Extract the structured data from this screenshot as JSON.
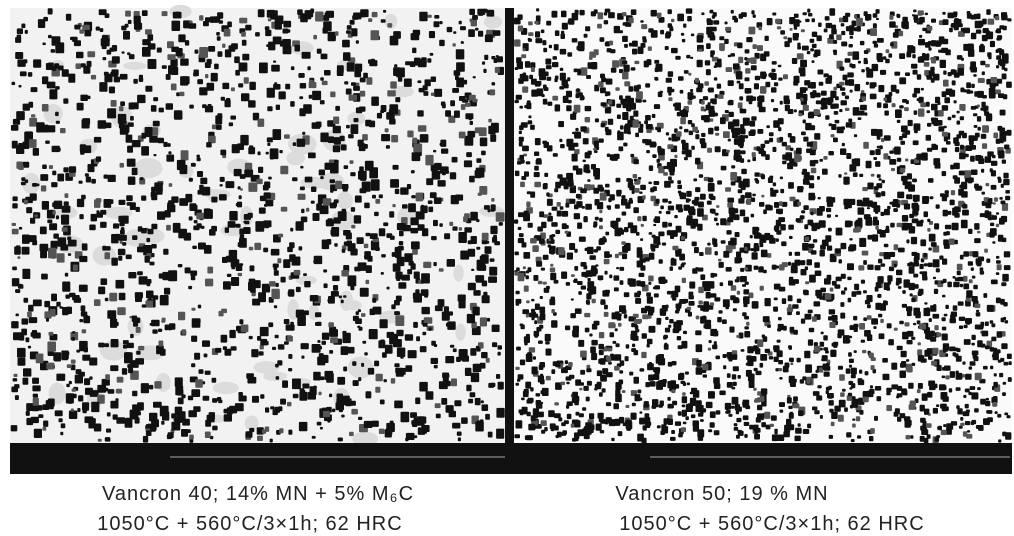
{
  "panels": [
    {
      "caption": [
        "Vancron 40; 14% MN + 5% M₆C",
        "1050°C + 560°C/3×1h; 62 HRC"
      ]
    },
    {
      "caption": [
        "Vancron 50; 19 % MN",
        "1050°C + 560°C/3×1h; 62 HRC"
      ]
    }
  ]
}
